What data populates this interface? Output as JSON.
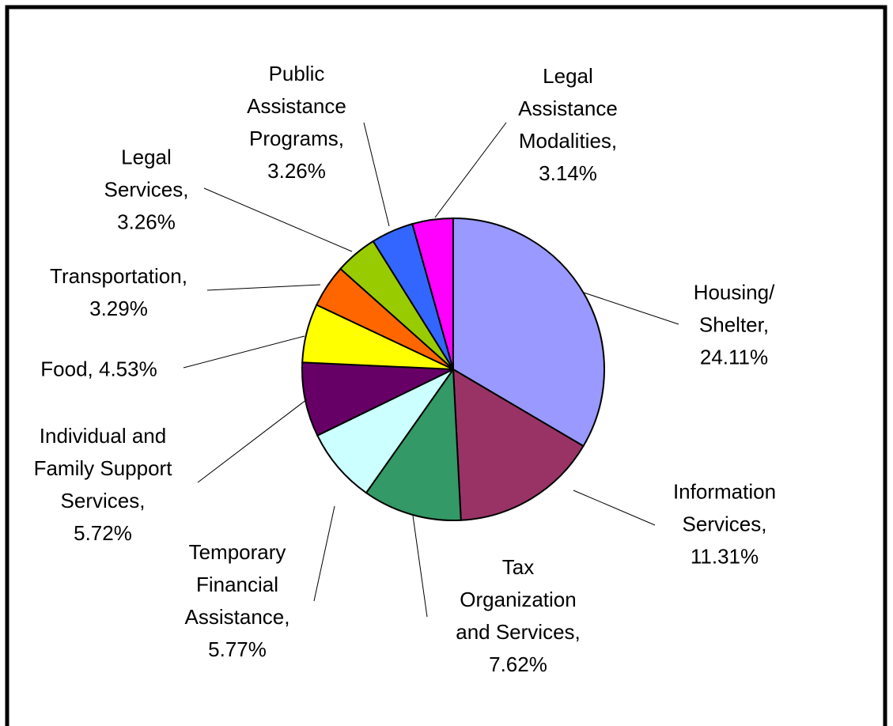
{
  "chart_data": {
    "type": "pie",
    "labels": [
      "Housing/\nShelter,\n24.11%",
      "Information\nServices,\n11.31%",
      "Tax\nOrganization\nand Services,\n7.62%",
      "Temporary\nFinancial\nAssistance,\n5.77%",
      "Individual and\nFamily Support\nServices,\n5.72%",
      "Food, 4.53%",
      "Transportation,\n3.29%",
      "Legal\nServices,\n3.26%",
      "Public\nAssistance\nPrograms,\n3.26%",
      "Legal\nAssistance\nModalities,\n3.14%"
    ],
    "values": [
      24.11,
      11.31,
      7.62,
      5.77,
      5.72,
      4.53,
      3.29,
      3.26,
      3.26,
      3.14
    ],
    "colors": [
      "#9999FF",
      "#993366",
      "#339966",
      "#CCFFFF",
      "#660066",
      "#FFFF00",
      "#FF6600",
      "#99CC00",
      "#3366FF",
      "#FF00FF"
    ]
  }
}
